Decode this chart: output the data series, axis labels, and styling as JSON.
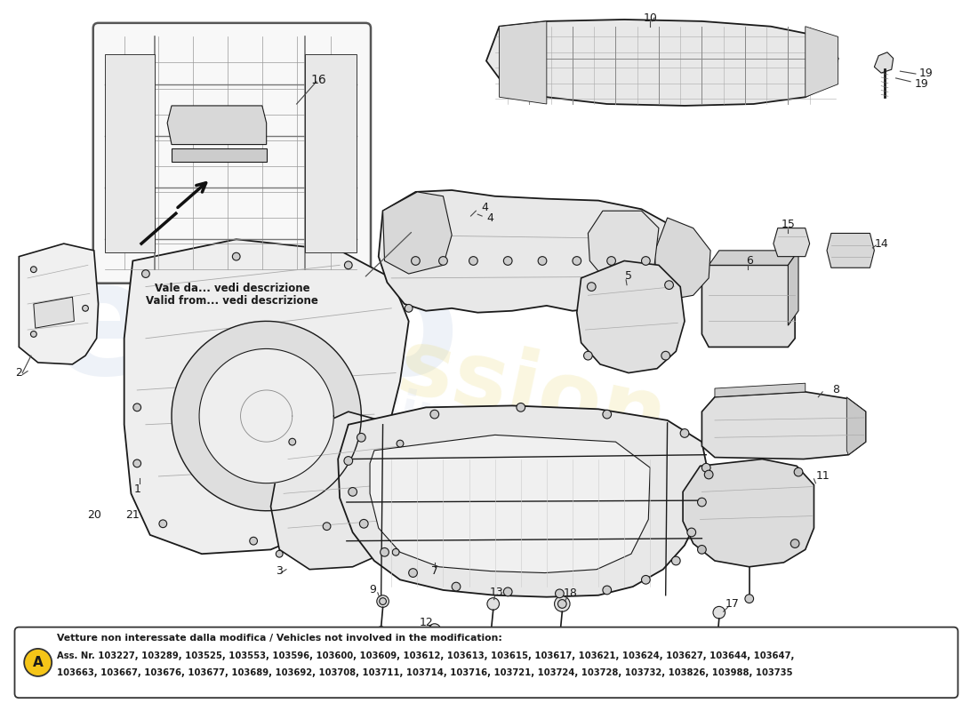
{
  "background_color": "#ffffff",
  "line_color": "#1a1a1a",
  "fill_color_light": "#f2f2f2",
  "fill_color_mid": "#e0e0e0",
  "fill_color_dark": "#c8c8c8",
  "footnote_title": "Vetture non interessate dalla modifica / Vehicles not involved in the modification:",
  "footnote_line1": "Ass. Nr. 103227, 103289, 103525, 103553, 103596, 103600, 103609, 103612, 103613, 103615, 103617, 103621, 103624, 103627, 103644, 103647,",
  "footnote_line2": "103663, 103667, 103676, 103677, 103689, 103692, 103708, 103711, 103714, 103716, 103721, 103724, 103728, 103732, 103826, 103988, 103735",
  "inset_text1": "Vale da... vedi descrizione",
  "inset_text2": "Valid from... vedi descrizione",
  "watermark_color": "#c8d4e8",
  "watermark_yellow": "#e8d870"
}
